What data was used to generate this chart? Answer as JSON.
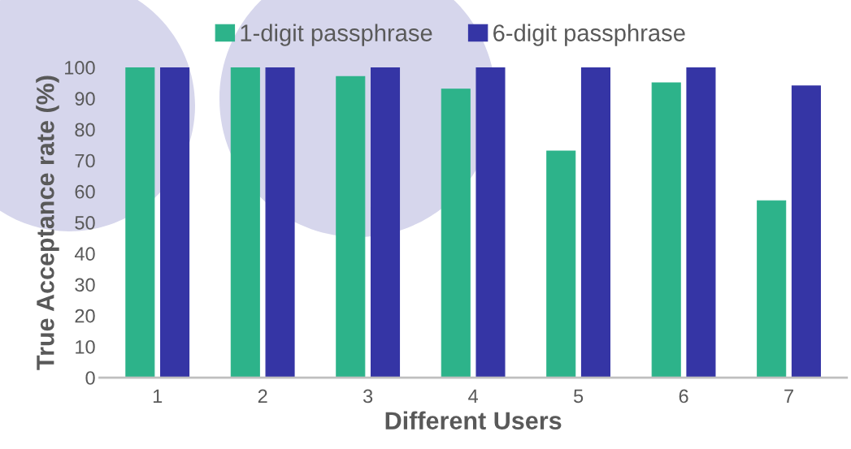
{
  "chart_data": {
    "type": "bar",
    "xlabel": "Different Users",
    "ylabel": "True Acceptance rate (%)",
    "categories": [
      "1",
      "2",
      "3",
      "4",
      "5",
      "6",
      "7"
    ],
    "series": [
      {
        "name": "1-digit passphrase",
        "color": "#2db38a",
        "values": [
          100,
          100,
          97,
          93,
          73,
          95,
          57
        ]
      },
      {
        "name": "6-digit passphrase",
        "color": "#3535a5",
        "values": [
          100,
          100,
          100,
          100,
          100,
          100,
          94
        ]
      }
    ],
    "ylim": [
      0,
      100
    ],
    "yticks": [
      0,
      10,
      20,
      30,
      40,
      50,
      60,
      70,
      80,
      90,
      100
    ],
    "grid": false,
    "legend": "top"
  }
}
